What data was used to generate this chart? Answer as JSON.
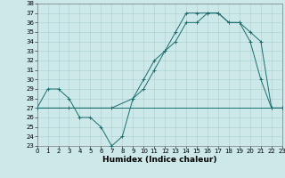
{
  "xlabel": "Humidex (Indice chaleur)",
  "bg_color": "#cce8e8",
  "grid_color": "#aad0d0",
  "line_color": "#1a6e6e",
  "line1_x": [
    0,
    1,
    2,
    3,
    4,
    5,
    6,
    7,
    8,
    9,
    10,
    11,
    12,
    13,
    14,
    15,
    16,
    17,
    18,
    19,
    20,
    21,
    22,
    23
  ],
  "line1_y": [
    27,
    29,
    29,
    28,
    26,
    26,
    25,
    23,
    24,
    28,
    29,
    31,
    33,
    35,
    37,
    37,
    37,
    37,
    36,
    36,
    34,
    30,
    27,
    27
  ],
  "line2_x": [
    0,
    3,
    7,
    9,
    10,
    11,
    12,
    13,
    14,
    15,
    16,
    17,
    18,
    19,
    20,
    21,
    22,
    23
  ],
  "line2_y": [
    27,
    27,
    27,
    28,
    30,
    32,
    33,
    34,
    36,
    36,
    37,
    37,
    36,
    36,
    35,
    34,
    27,
    27
  ],
  "line3_x": [
    0,
    3,
    9,
    23
  ],
  "line3_y": [
    27,
    27,
    27,
    27
  ],
  "xlim": [
    0,
    23
  ],
  "ylim": [
    23,
    38
  ],
  "xticks": [
    0,
    1,
    2,
    3,
    4,
    5,
    6,
    7,
    8,
    9,
    10,
    11,
    12,
    13,
    14,
    15,
    16,
    17,
    18,
    19,
    20,
    21,
    22,
    23
  ],
  "yticks": [
    23,
    24,
    25,
    26,
    27,
    28,
    29,
    30,
    31,
    32,
    33,
    34,
    35,
    36,
    37,
    38
  ],
  "tick_fontsize": 5.0,
  "xlabel_fontsize": 6.5,
  "markersize": 2.5,
  "lw": 0.7
}
